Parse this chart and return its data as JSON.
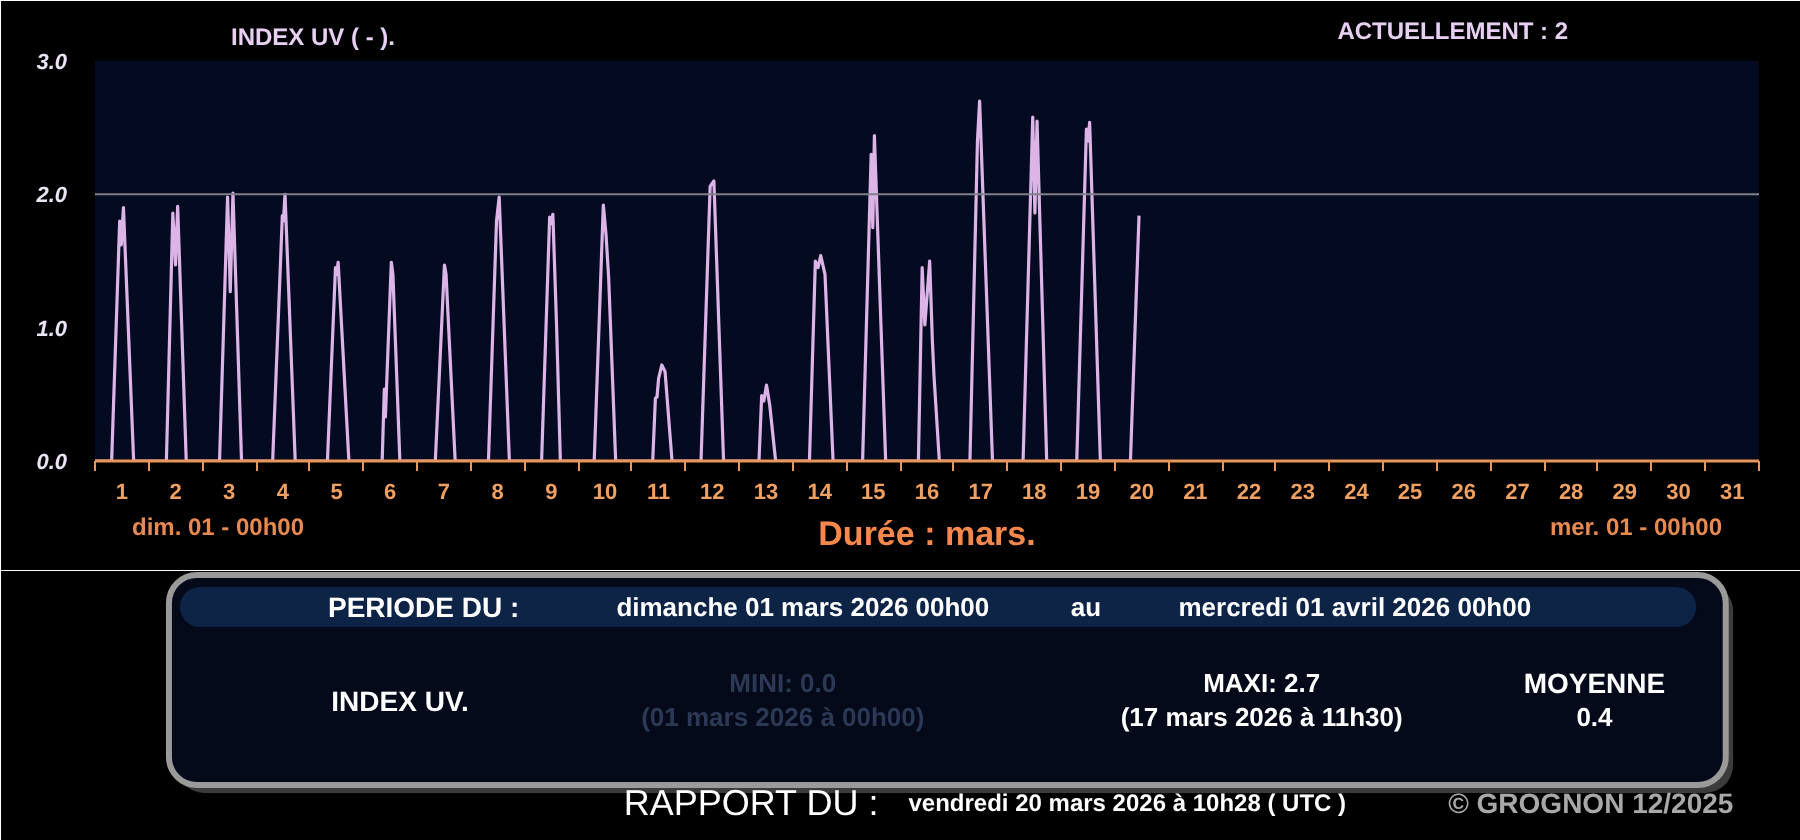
{
  "chart_data": {
    "type": "line",
    "title": "INDEX UV ( - ).",
    "xlabel": "Durée : mars.",
    "xlim": [
      1,
      32
    ],
    "ylim": [
      0,
      3
    ],
    "xticks": [
      {
        "value": 1,
        "label": null
      },
      {
        "value": 1.5,
        "label": "1"
      },
      {
        "value": 2,
        "label": null
      },
      {
        "value": 2.5,
        "label": "2"
      },
      {
        "value": 3,
        "label": null
      },
      {
        "value": 3.5,
        "label": "3"
      },
      {
        "value": 4,
        "label": null
      },
      {
        "value": 4.5,
        "label": "4"
      },
      {
        "value": 5,
        "label": null
      },
      {
        "value": 5.5,
        "label": "5"
      },
      {
        "value": 6,
        "label": null
      },
      {
        "value": 6.5,
        "label": "6"
      },
      {
        "value": 7,
        "label": null
      },
      {
        "value": 7.5,
        "label": "7"
      },
      {
        "value": 8,
        "label": null
      },
      {
        "value": 8.5,
        "label": "8"
      },
      {
        "value": 9,
        "label": null
      },
      {
        "value": 9.5,
        "label": "9"
      },
      {
        "value": 10,
        "label": null
      },
      {
        "value": 10.5,
        "label": "10"
      },
      {
        "value": 11,
        "label": null
      },
      {
        "value": 11.5,
        "label": "11"
      },
      {
        "value": 12,
        "label": null
      },
      {
        "value": 12.5,
        "label": "12"
      },
      {
        "value": 13,
        "label": null
      },
      {
        "value": 13.5,
        "label": "13"
      },
      {
        "value": 14,
        "label": null
      },
      {
        "value": 14.5,
        "label": "14"
      },
      {
        "value": 15,
        "label": null
      },
      {
        "value": 15.5,
        "label": "15"
      },
      {
        "value": 16,
        "label": null
      },
      {
        "value": 16.5,
        "label": "16"
      },
      {
        "value": 17,
        "label": null
      },
      {
        "value": 17.5,
        "label": "17"
      },
      {
        "value": 18,
        "label": null
      },
      {
        "value": 18.5,
        "label": "18"
      },
      {
        "value": 19,
        "label": null
      },
      {
        "value": 19.5,
        "label": "19"
      },
      {
        "value": 20,
        "label": null
      },
      {
        "value": 20.5,
        "label": "20"
      },
      {
        "value": 21,
        "label": null
      },
      {
        "value": 21.5,
        "label": "21"
      },
      {
        "value": 22,
        "label": null
      },
      {
        "value": 22.5,
        "label": "22"
      },
      {
        "value": 23,
        "label": null
      },
      {
        "value": 23.5,
        "label": "23"
      },
      {
        "value": 24,
        "label": null
      },
      {
        "value": 24.5,
        "label": "24"
      },
      {
        "value": 25,
        "label": null
      },
      {
        "value": 25.5,
        "label": "25"
      },
      {
        "value": 26,
        "label": null
      },
      {
        "value": 26.5,
        "label": "26"
      },
      {
        "value": 27,
        "label": null
      },
      {
        "value": 27.5,
        "label": "27"
      },
      {
        "value": 28,
        "label": null
      },
      {
        "value": 28.5,
        "label": "28"
      },
      {
        "value": 29,
        "label": null
      },
      {
        "value": 29.5,
        "label": "29"
      },
      {
        "value": 30,
        "label": null
      },
      {
        "value": 30.5,
        "label": "30"
      },
      {
        "value": 31,
        "label": null
      },
      {
        "value": 31.5,
        "label": "31"
      },
      {
        "value": 32,
        "label": null
      }
    ],
    "yticks": [
      {
        "value": 0,
        "label": "0.0"
      },
      {
        "value": 1,
        "label": "1.0"
      },
      {
        "value": 2,
        "label": "2.0"
      },
      {
        "value": 3,
        "label": "3.0"
      }
    ],
    "grid": false,
    "ref_lines": [
      {
        "axis": "y",
        "value": 2,
        "color": "#80808c"
      }
    ],
    "x": [
      1,
      1.31,
      1.46,
      1.49,
      1.53,
      1.72,
      2.33,
      2.45,
      2.5,
      2.54,
      2.7,
      3.32,
      3.47,
      3.52,
      3.57,
      3.73,
      4.31,
      4.49,
      4.51,
      4.54,
      4.73,
      5.33,
      5.48,
      5.5,
      5.53,
      5.73,
      6.35,
      6.39,
      6.41,
      6.52,
      6.55,
      6.68,
      7.34,
      7.51,
      7.54,
      7.71,
      8.33,
      8.48,
      8.53,
      8.72,
      9.32,
      9.47,
      9.5,
      9.53,
      9.6,
      9.67,
      10.3,
      10.47,
      10.52,
      10.57,
      10.7,
      11.39,
      11.44,
      11.47,
      11.5,
      11.56,
      11.62,
      11.75,
      12.29,
      12.46,
      12.53,
      12.71,
      13.37,
      13.42,
      13.46,
      13.51,
      13.57,
      13.68,
      14.31,
      14.42,
      14.47,
      14.52,
      14.6,
      14.75,
      15.3,
      15.46,
      15.49,
      15.52,
      15.73,
      16.34,
      16.41,
      16.46,
      16.55,
      16.6,
      16.63,
      16.73,
      17.3,
      17.44,
      17.48,
      17.72,
      18.29,
      18.47,
      18.51,
      18.55,
      18.73,
      19.29,
      19.47,
      19.5,
      19.53,
      19.73,
      20.29,
      20.45
    ],
    "series": [
      {
        "color": "#dcb4e6",
        "values": [
          0,
          0,
          1.8,
          1.62,
          1.9,
          0,
          0,
          1.86,
          1.47,
          1.91,
          0,
          0,
          1.98,
          1.27,
          2.01,
          0,
          0,
          1.84,
          1.8,
          2.0,
          0,
          0,
          1.45,
          1.4,
          1.49,
          0,
          0,
          0.54,
          0.33,
          1.49,
          1.4,
          0,
          0,
          1.47,
          1.4,
          0,
          0,
          1.8,
          1.98,
          0,
          0,
          1.83,
          1.78,
          1.85,
          1.0,
          0,
          0,
          1.92,
          1.7,
          1.37,
          0,
          0,
          0.47,
          0.48,
          0.62,
          0.72,
          0.67,
          0,
          0,
          2.06,
          2.1,
          0,
          0,
          0.49,
          0.45,
          0.57,
          0.42,
          0,
          0,
          1.5,
          1.45,
          1.54,
          1.4,
          0,
          0,
          2.3,
          1.75,
          2.44,
          0,
          0,
          1.45,
          1.02,
          1.5,
          0.9,
          0.64,
          0,
          0,
          2.4,
          2.7,
          0,
          0,
          2.58,
          1.86,
          2.55,
          0,
          0,
          2.49,
          2.4,
          2.54,
          0,
          0,
          1.84
        ]
      }
    ],
    "annotations": [
      "ACTUELLEMENT : 2",
      "dim. 01 - 00h00",
      "mer. 01 - 00h00",
      "PERIODE DU :",
      "dimanche 01 mars 2026 00h00",
      "au",
      "mercredi 01 avril 2026 00h00",
      "INDEX UV.",
      "MINI: 0.0",
      "(01 mars 2026 à 00h00)",
      "MAXI: 2.7",
      "(17 mars 2026 à 11h30)",
      "MOYENNE",
      "0.4",
      "RAPPORT DU :",
      "vendredi 20 mars 2026 à 10h28 ( UTC )",
      "© GROGNON 12/2025"
    ]
  }
}
